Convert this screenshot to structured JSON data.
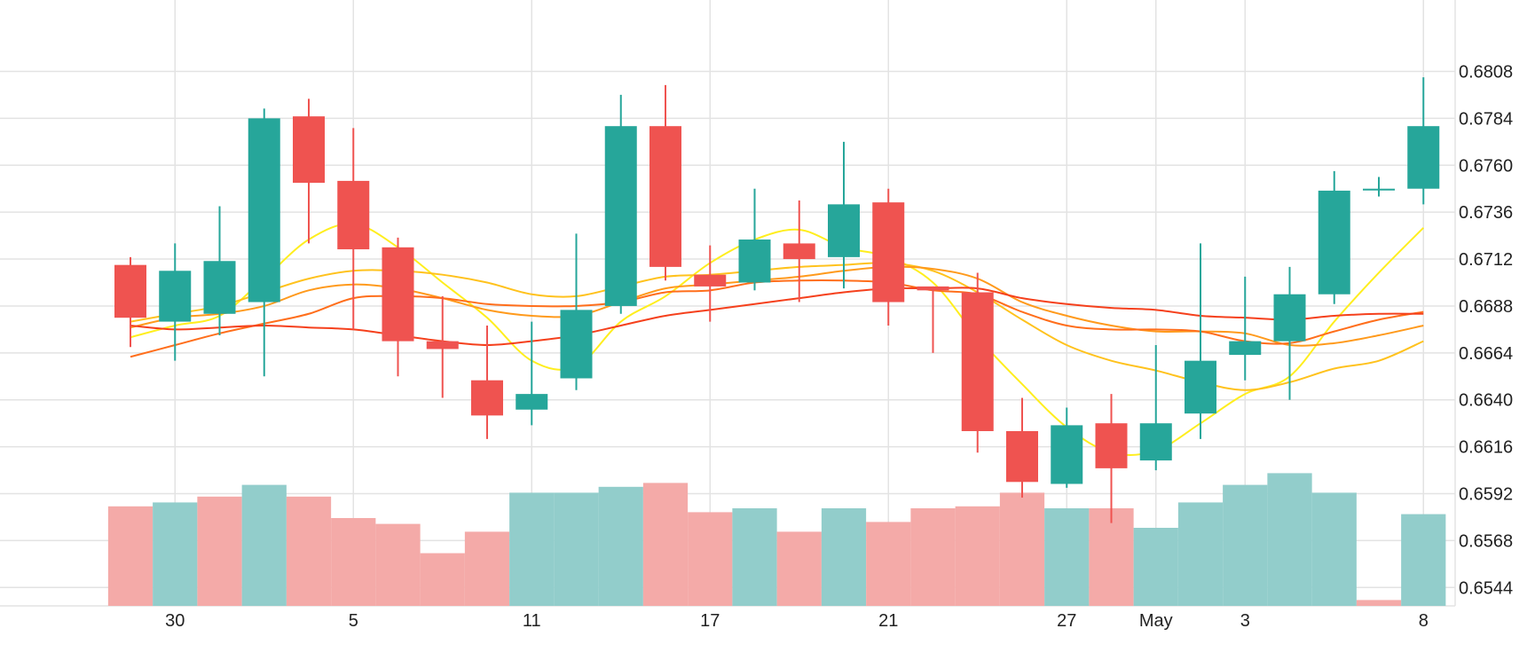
{
  "chart_data": {
    "type": "candlestick",
    "y_axis": {
      "position": "right",
      "ticks": [
        "0.6808",
        "0.6784",
        "0.6760",
        "0.6736",
        "0.6712",
        "0.6688",
        "0.6664",
        "0.6640",
        "0.6616",
        "0.6592",
        "0.6568",
        "0.6544"
      ],
      "range": [
        0.6521,
        0.683
      ]
    },
    "x_axis": {
      "tick_labels": [
        {
          "label": "30",
          "index": 1
        },
        {
          "label": "5",
          "index": 5
        },
        {
          "label": "11",
          "index": 9
        },
        {
          "label": "17",
          "index": 13
        },
        {
          "label": "21",
          "index": 17
        },
        {
          "label": "27",
          "index": 21
        },
        {
          "label": "May",
          "index": 23
        },
        {
          "label": "3",
          "index": 25
        },
        {
          "label": "8",
          "index": 29
        }
      ]
    },
    "grid": true,
    "colors": {
      "up": "#26a69a",
      "down": "#ef5350",
      "volume_up": "#92cdcb",
      "volume_down": "#f4aaa8",
      "grid": "#e3e3e3",
      "ma_colors": [
        "#ffee1e",
        "#ffc21d",
        "#ff9a1c",
        "#ff6e1b",
        "#f5401c"
      ]
    },
    "candles": [
      {
        "o": 0.6709,
        "h": 0.6713,
        "l": 0.6667,
        "c": 0.6682
      },
      {
        "o": 0.668,
        "h": 0.672,
        "l": 0.666,
        "c": 0.6706
      },
      {
        "o": 0.6684,
        "h": 0.6739,
        "l": 0.6673,
        "c": 0.6711
      },
      {
        "o": 0.669,
        "h": 0.6789,
        "l": 0.6652,
        "c": 0.6784
      },
      {
        "o": 0.6785,
        "h": 0.6794,
        "l": 0.672,
        "c": 0.6751
      },
      {
        "o": 0.6752,
        "h": 0.6779,
        "l": 0.6676,
        "c": 0.6717
      },
      {
        "o": 0.6718,
        "h": 0.6723,
        "l": 0.6652,
        "c": 0.667
      },
      {
        "o": 0.667,
        "h": 0.6693,
        "l": 0.6641,
        "c": 0.6666
      },
      {
        "o": 0.665,
        "h": 0.6678,
        "l": 0.662,
        "c": 0.6632
      },
      {
        "o": 0.6635,
        "h": 0.668,
        "l": 0.6627,
        "c": 0.6643
      },
      {
        "o": 0.6651,
        "h": 0.6725,
        "l": 0.6645,
        "c": 0.6686
      },
      {
        "o": 0.6688,
        "h": 0.6796,
        "l": 0.6684,
        "c": 0.678
      },
      {
        "o": 0.678,
        "h": 0.6801,
        "l": 0.6701,
        "c": 0.6708
      },
      {
        "o": 0.6704,
        "h": 0.6719,
        "l": 0.668,
        "c": 0.6698
      },
      {
        "o": 0.67,
        "h": 0.6748,
        "l": 0.6696,
        "c": 0.6722
      },
      {
        "o": 0.672,
        "h": 0.6742,
        "l": 0.669,
        "c": 0.6712
      },
      {
        "o": 0.6713,
        "h": 0.6772,
        "l": 0.6697,
        "c": 0.674
      },
      {
        "o": 0.6741,
        "h": 0.6748,
        "l": 0.6678,
        "c": 0.669
      },
      {
        "o": 0.6698,
        "h": 0.6698,
        "l": 0.6664,
        "c": 0.6696
      },
      {
        "o": 0.6695,
        "h": 0.6705,
        "l": 0.6613,
        "c": 0.6624
      },
      {
        "o": 0.6624,
        "h": 0.6641,
        "l": 0.659,
        "c": 0.6598
      },
      {
        "o": 0.6597,
        "h": 0.6636,
        "l": 0.6595,
        "c": 0.6627
      },
      {
        "o": 0.6628,
        "h": 0.6643,
        "l": 0.6577,
        "c": 0.6605
      },
      {
        "o": 0.6609,
        "h": 0.6668,
        "l": 0.6604,
        "c": 0.6628
      },
      {
        "o": 0.6633,
        "h": 0.672,
        "l": 0.662,
        "c": 0.666
      },
      {
        "o": 0.6663,
        "h": 0.6703,
        "l": 0.665,
        "c": 0.667
      },
      {
        "o": 0.667,
        "h": 0.6708,
        "l": 0.664,
        "c": 0.6694
      },
      {
        "o": 0.6694,
        "h": 0.6757,
        "l": 0.6689,
        "c": 0.6747
      },
      {
        "o": 0.6748,
        "h": 0.6754,
        "l": 0.6744,
        "c": 0.6748
      },
      {
        "o": 0.6748,
        "h": 0.6805,
        "l": 0.674,
        "c": 0.678
      }
    ],
    "volume": {
      "note": "relative volume, 0..1",
      "values": [
        0.51,
        0.53,
        0.56,
        0.62,
        0.56,
        0.45,
        0.42,
        0.27,
        0.38,
        0.58,
        0.58,
        0.61,
        0.63,
        0.48,
        0.5,
        0.38,
        0.5,
        0.43,
        0.5,
        0.51,
        0.58,
        0.5,
        0.5,
        0.4,
        0.53,
        0.62,
        0.68,
        0.58,
        0.03,
        0.47
      ],
      "direction": [
        "down",
        "up",
        "down",
        "up",
        "down",
        "down",
        "down",
        "down",
        "down",
        "up",
        "up",
        "up",
        "down",
        "down",
        "up",
        "down",
        "up",
        "down",
        "down",
        "down",
        "down",
        "up",
        "down",
        "up",
        "up",
        "up",
        "up",
        "up",
        "down",
        "up"
      ]
    },
    "moving_averages": [
      {
        "color": "#ffee1e",
        "values": [
          0.6672,
          0.6678,
          0.6683,
          0.6702,
          0.6722,
          0.673,
          0.6718,
          0.67,
          0.6682,
          0.666,
          0.6657,
          0.668,
          0.6693,
          0.671,
          0.6722,
          0.6727,
          0.6718,
          0.6713,
          0.67,
          0.6672,
          0.6648,
          0.6626,
          0.6613,
          0.6614,
          0.6628,
          0.6643,
          0.6652,
          0.668,
          0.6705,
          0.6728
        ]
      },
      {
        "color": "#ffc21d",
        "values": [
          0.668,
          0.6684,
          0.6688,
          0.6695,
          0.6702,
          0.6706,
          0.6706,
          0.6704,
          0.67,
          0.6694,
          0.6693,
          0.6698,
          0.6703,
          0.6704,
          0.6706,
          0.6708,
          0.6709,
          0.671,
          0.6706,
          0.6695,
          0.6681,
          0.6668,
          0.666,
          0.6655,
          0.6649,
          0.6645,
          0.6649,
          0.6656,
          0.666,
          0.667
        ]
      },
      {
        "color": "#ff9a1c",
        "values": [
          0.6677,
          0.6682,
          0.6684,
          0.6688,
          0.6696,
          0.6699,
          0.6697,
          0.6692,
          0.6686,
          0.6683,
          0.6683,
          0.669,
          0.6697,
          0.6699,
          0.6701,
          0.6703,
          0.6706,
          0.6708,
          0.6707,
          0.6702,
          0.669,
          0.6683,
          0.6678,
          0.6675,
          0.6675,
          0.6674,
          0.6668,
          0.6669,
          0.6673,
          0.6678
        ]
      },
      {
        "color": "#ff6e1b",
        "values": [
          0.6662,
          0.6668,
          0.6674,
          0.6679,
          0.6684,
          0.6692,
          0.6693,
          0.6692,
          0.6689,
          0.6688,
          0.6688,
          0.669,
          0.6695,
          0.6696,
          0.67,
          0.6701,
          0.6701,
          0.67,
          0.6696,
          0.6694,
          0.6685,
          0.6678,
          0.6676,
          0.6676,
          0.6675,
          0.667,
          0.6669,
          0.6675,
          0.6681,
          0.6685
        ]
      },
      {
        "color": "#f5401c",
        "values": [
          0.6678,
          0.6676,
          0.6677,
          0.6678,
          0.6677,
          0.6676,
          0.6673,
          0.667,
          0.6668,
          0.667,
          0.6673,
          0.6678,
          0.6683,
          0.6686,
          0.6689,
          0.6692,
          0.6695,
          0.6697,
          0.6697,
          0.6697,
          0.6692,
          0.6689,
          0.6687,
          0.6686,
          0.6683,
          0.6682,
          0.6681,
          0.6683,
          0.6684,
          0.6684
        ]
      }
    ]
  }
}
